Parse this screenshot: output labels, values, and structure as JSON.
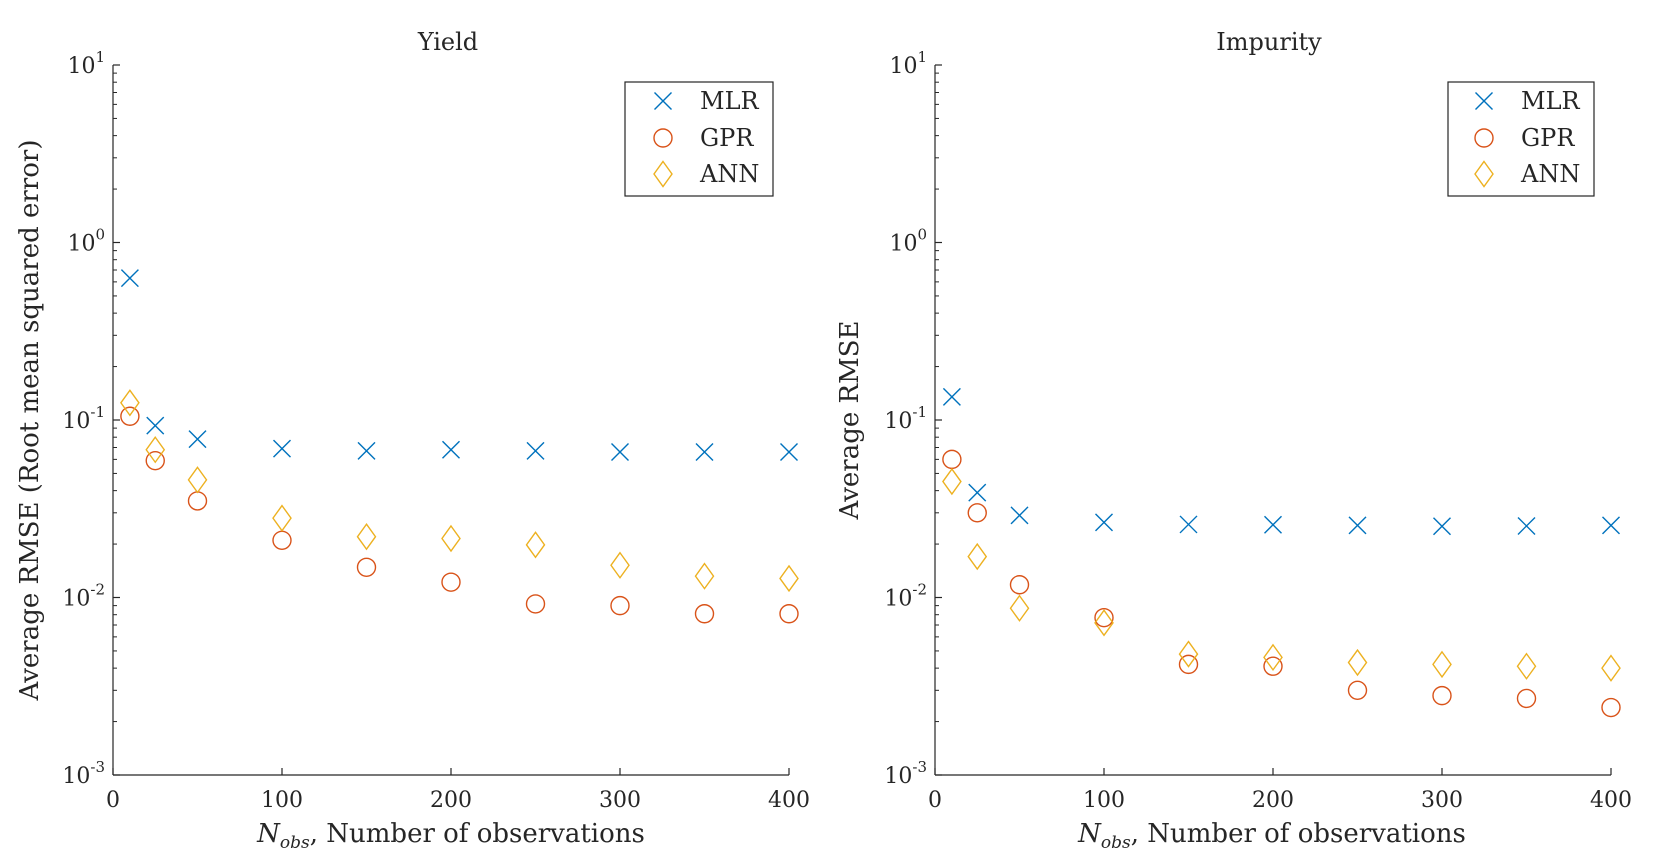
{
  "chart_data": [
    {
      "type": "scatter",
      "title": "Yield",
      "xlabel": "N_obs, Number of observations",
      "xlabel_main": "N",
      "xlabel_sub": "obs",
      "xlabel_rest": ", Number of observations",
      "ylabel": "Average RMSE (Root mean squared error)",
      "xlim": [
        0,
        400
      ],
      "ylim": [
        0.001,
        10
      ],
      "yscale": "log",
      "xticks": [
        "0",
        "100",
        "200",
        "300",
        "400"
      ],
      "yticks": [
        {
          "base": "10",
          "exp": "-3"
        },
        {
          "base": "10",
          "exp": "-2"
        },
        {
          "base": "10",
          "exp": "-1"
        },
        {
          "base": "10",
          "exp": "0"
        },
        {
          "base": "10",
          "exp": "1"
        }
      ],
      "legend_position": "top-right",
      "x": [
        10,
        25,
        50,
        100,
        150,
        200,
        250,
        300,
        350,
        400
      ],
      "series": [
        {
          "name": "MLR",
          "marker": "x",
          "color": "#0072BD",
          "values": [
            0.63,
            0.093,
            0.078,
            0.069,
            0.067,
            0.068,
            0.067,
            0.066,
            0.066,
            0.066
          ]
        },
        {
          "name": "GPR",
          "marker": "o",
          "color": "#D95319",
          "values": [
            0.105,
            0.059,
            0.035,
            0.021,
            0.0148,
            0.0122,
            0.0092,
            0.009,
            0.0081,
            0.0081
          ]
        },
        {
          "name": "ANN",
          "marker": "d",
          "color": "#EDB120",
          "values": [
            0.125,
            0.068,
            0.046,
            0.028,
            0.022,
            0.0215,
            0.0198,
            0.0152,
            0.0132,
            0.0128
          ]
        }
      ]
    },
    {
      "type": "scatter",
      "title": "Impurity",
      "xlabel": "N_obs, Number of observations",
      "xlabel_main": "N",
      "xlabel_sub": "obs",
      "xlabel_rest": ", Number of observations",
      "ylabel": "Average RMSE",
      "xlim": [
        0,
        400
      ],
      "ylim": [
        0.001,
        10
      ],
      "yscale": "log",
      "xticks": [
        "0",
        "100",
        "200",
        "300",
        "400"
      ],
      "yticks": [
        {
          "base": "10",
          "exp": "-3"
        },
        {
          "base": "10",
          "exp": "-2"
        },
        {
          "base": "10",
          "exp": "-1"
        },
        {
          "base": "10",
          "exp": "0"
        },
        {
          "base": "10",
          "exp": "1"
        }
      ],
      "legend_position": "top-right",
      "x": [
        10,
        25,
        50,
        100,
        150,
        200,
        250,
        300,
        350,
        400
      ],
      "series": [
        {
          "name": "MLR",
          "marker": "x",
          "color": "#0072BD",
          "values": [
            0.135,
            0.039,
            0.029,
            0.0265,
            0.0258,
            0.0257,
            0.0255,
            0.0252,
            0.0253,
            0.0255
          ]
        },
        {
          "name": "GPR",
          "marker": "o",
          "color": "#D95319",
          "values": [
            0.06,
            0.03,
            0.0118,
            0.0077,
            0.0042,
            0.0041,
            0.003,
            0.0028,
            0.0027,
            0.0024
          ]
        },
        {
          "name": "ANN",
          "marker": "d",
          "color": "#EDB120",
          "values": [
            0.045,
            0.017,
            0.0087,
            0.0072,
            0.0048,
            0.0046,
            0.0043,
            0.0042,
            0.0041,
            0.004
          ]
        }
      ]
    }
  ]
}
